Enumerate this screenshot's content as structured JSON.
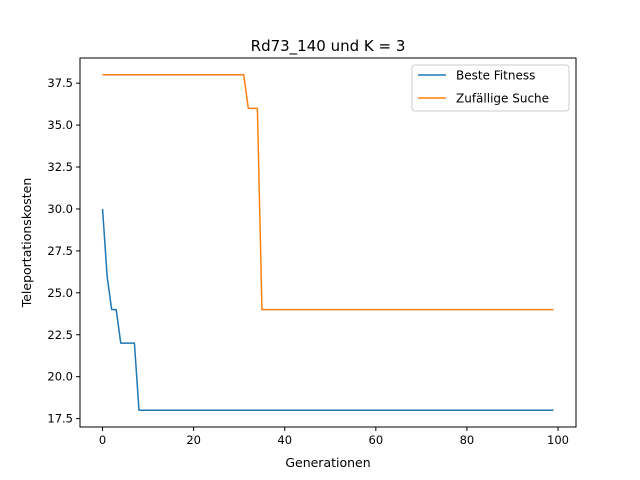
{
  "chart_data": {
    "type": "line",
    "title": "Rd73_140 und K = 3",
    "xlabel": "Generationen",
    "ylabel": "Teleportationskosten",
    "xlim": [
      -4.95,
      103.95
    ],
    "ylim": [
      17.0,
      39.0
    ],
    "xticks": [
      0,
      20,
      40,
      60,
      80,
      100
    ],
    "xtick_labels": [
      "0",
      "20",
      "40",
      "60",
      "80",
      "100"
    ],
    "yticks": [
      17.5,
      20.0,
      22.5,
      25.0,
      27.5,
      30.0,
      32.5,
      35.0,
      37.5
    ],
    "ytick_labels": [
      "17.5",
      "20.0",
      "22.5",
      "25.0",
      "27.5",
      "30.0",
      "32.5",
      "35.0",
      "37.5"
    ],
    "grid": false,
    "legend_position": "top-right",
    "series": [
      {
        "name": "Beste Fitness",
        "color": "#1f77b4",
        "x": [
          0,
          1,
          2,
          3,
          4,
          5,
          6,
          7,
          8,
          99
        ],
        "y": [
          30,
          26,
          24,
          24,
          22,
          22,
          22,
          22,
          18,
          18
        ]
      },
      {
        "name": "Zufällige Suche",
        "color": "#ff7f0e",
        "x": [
          0,
          31,
          32,
          33,
          34,
          35,
          99
        ],
        "y": [
          38,
          38,
          36,
          36,
          36,
          24,
          24
        ]
      }
    ]
  }
}
